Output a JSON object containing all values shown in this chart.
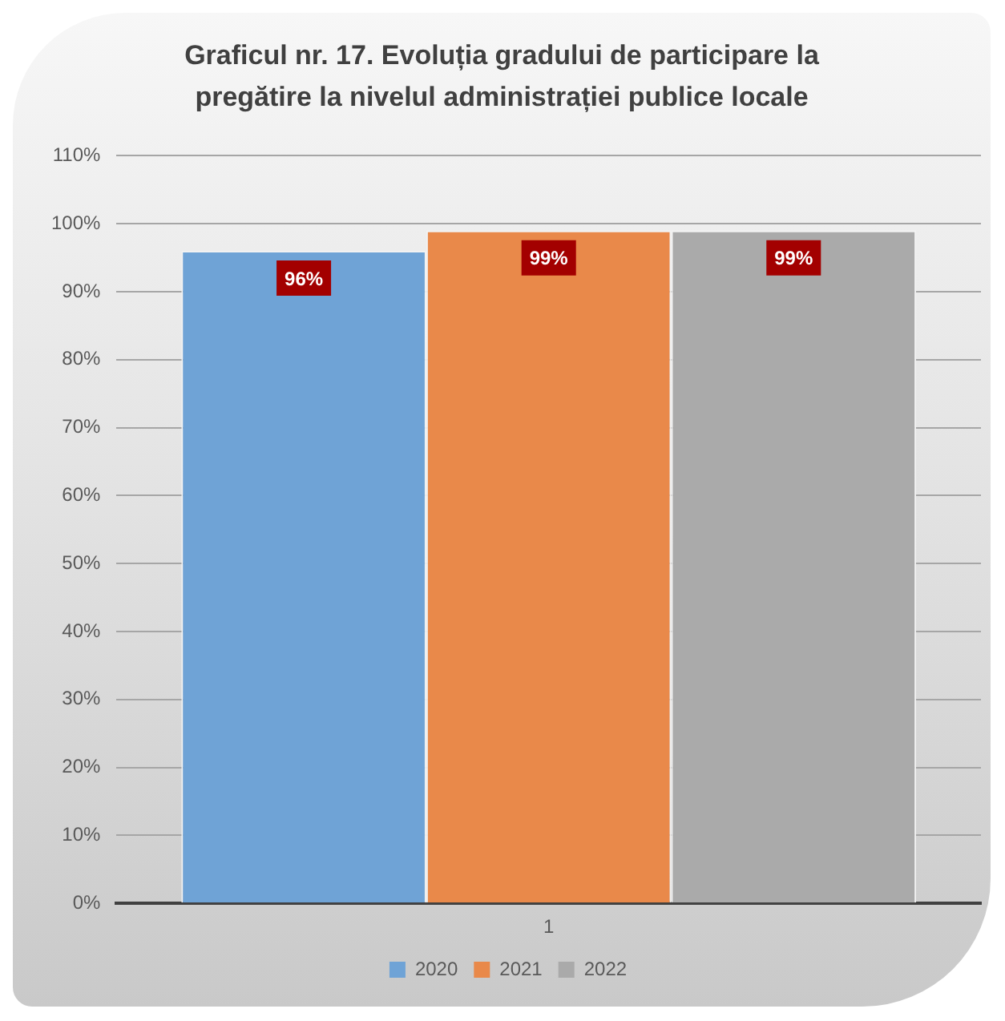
{
  "chart_data": {
    "type": "bar",
    "title": "Graficul nr. 17. Evoluția gradului de participare la pregătire la nivelul administrației publice locale",
    "categories": [
      "1"
    ],
    "series": [
      {
        "name": "2020",
        "color": "#6fa3d6",
        "values": [
          96
        ],
        "value_labels": [
          "96%"
        ]
      },
      {
        "name": "2021",
        "color": "#e9894a",
        "values": [
          99
        ],
        "value_labels": [
          "99%"
        ]
      },
      {
        "name": "2022",
        "color": "#aaaaaa",
        "values": [
          99
        ],
        "value_labels": [
          "99%"
        ]
      }
    ],
    "ylim": [
      0,
      110
    ],
    "yticks": [
      {
        "value": 0,
        "label": "0%"
      },
      {
        "value": 10,
        "label": "10%"
      },
      {
        "value": 20,
        "label": "20%"
      },
      {
        "value": 30,
        "label": "30%"
      },
      {
        "value": 40,
        "label": "40%"
      },
      {
        "value": 50,
        "label": "50%"
      },
      {
        "value": 60,
        "label": "60%"
      },
      {
        "value": 70,
        "label": "70%"
      },
      {
        "value": 80,
        "label": "80%"
      },
      {
        "value": 90,
        "label": "90%"
      },
      {
        "value": 100,
        "label": "100%"
      },
      {
        "value": 110,
        "label": "110%"
      }
    ],
    "grid": "y",
    "legend": "bottom"
  }
}
